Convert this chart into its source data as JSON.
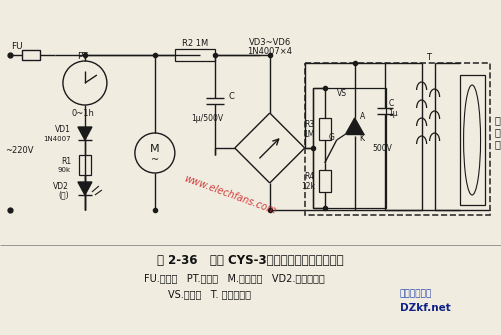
{
  "title_line1": "图 2-36   宝利 CYS-3型茶具臭氧消毒柜电路图",
  "legend_line1": "FU.熔断器   PT.定时器   M.风扇电机   VD2.电源指示灯",
  "legend_line2": "VS.晶闸管   T. 高压变压器",
  "logo1": "电子开发社区",
  "logo2": "DZkf.net",
  "bg_color": "#f0ece0",
  "line_color": "#1a1a1a",
  "dashed_color": "#333333",
  "red_watermark": "#cc2222"
}
